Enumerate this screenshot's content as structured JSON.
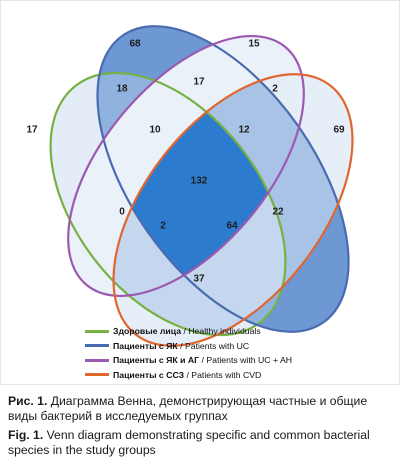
{
  "diagram": {
    "colors": {
      "healthy": "#77b043",
      "uc": "#4a6bb0",
      "uc_ah": "#9b59b0",
      "cvd": "#e0662f",
      "fill_light": "#d4e2f3",
      "fill_mid": "#9fbde2",
      "fill_dark": "#6b96d3",
      "fill_core": "#2d7bcf"
    },
    "regions": [
      {
        "id": "healthy-only",
        "value": "17"
      },
      {
        "id": "uc-only",
        "value": "68"
      },
      {
        "id": "ucah-only",
        "value": "15"
      },
      {
        "id": "cvd-only",
        "value": "69"
      },
      {
        "id": "healthy-uc",
        "value": "18"
      },
      {
        "id": "uc-ucah",
        "value": "17"
      },
      {
        "id": "ucah-cvd",
        "value": "2"
      },
      {
        "id": "healthy-uc-ucah",
        "value": "10"
      },
      {
        "id": "uc-ucah-cvd",
        "value": "12"
      },
      {
        "id": "all-four",
        "value": "132"
      },
      {
        "id": "healthy-ucah",
        "value": "0"
      },
      {
        "id": "uc-cvd",
        "value": "22"
      },
      {
        "id": "healthy-ucah-cvd",
        "value": "2"
      },
      {
        "id": "healthy-uc-cvd",
        "value": "64"
      },
      {
        "id": "healthy-cvd",
        "value": "37"
      }
    ]
  },
  "legend": [
    {
      "ru": "Здоровые лица",
      "en": " / Healthy individuals",
      "color_key": "healthy"
    },
    {
      "ru": "Пациенты с ЯК",
      "en": " / Patients with UC",
      "color_key": "uc"
    },
    {
      "ru": "Пациенты с ЯК и АГ",
      "en": " / Patients with UC + AH",
      "color_key": "uc_ah"
    },
    {
      "ru": "Пациенты с ССЗ",
      "en": " / Patients with CVD",
      "color_key": "cvd"
    }
  ],
  "caption": {
    "ru_prefix": "Рис. 1.",
    "ru_text": " Диаграмма Венна, демонстрирующая частные и общие виды бактерий в исследуемых группах",
    "en_prefix": "Fig. 1.",
    "en_text": " Venn diagram demonstrating specific and common bacterial species in the study groups"
  }
}
